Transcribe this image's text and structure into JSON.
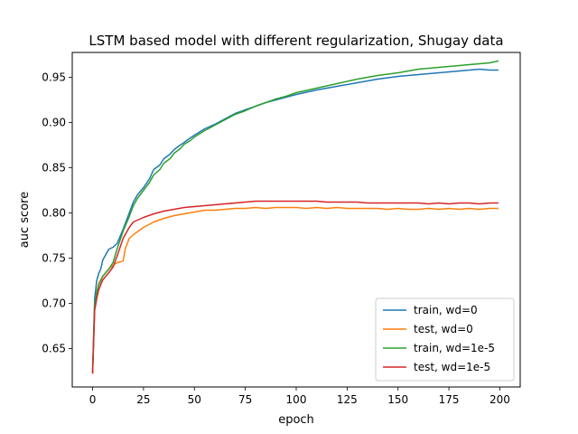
{
  "chart_data": {
    "type": "line",
    "title": "LSTM based model with different regularization, Shugay data",
    "xlabel": "epoch",
    "ylabel": "auc score",
    "xlim": [
      -10,
      210
    ],
    "ylim": [
      0.6075,
      0.9775
    ],
    "xticks": [
      0,
      25,
      50,
      75,
      100,
      125,
      150,
      175,
      200
    ],
    "yticks": [
      0.65,
      0.7,
      0.75,
      0.8,
      0.85,
      0.9,
      0.95
    ],
    "grid": false,
    "legend_position": "lower-right",
    "series": [
      {
        "name": "train, wd=0",
        "color": "#1f77b4",
        "x": [
          0,
          1,
          2,
          3,
          4,
          5,
          6,
          8,
          10,
          12,
          15,
          18,
          20,
          22,
          25,
          28,
          30,
          33,
          35,
          38,
          40,
          43,
          45,
          48,
          50,
          55,
          60,
          65,
          70,
          75,
          80,
          85,
          90,
          95,
          100,
          110,
          120,
          130,
          140,
          150,
          160,
          170,
          180,
          190,
          195,
          199
        ],
        "y": [
          0.625,
          0.705,
          0.725,
          0.733,
          0.738,
          0.748,
          0.752,
          0.76,
          0.762,
          0.766,
          0.782,
          0.8,
          0.812,
          0.82,
          0.828,
          0.838,
          0.848,
          0.853,
          0.86,
          0.865,
          0.87,
          0.875,
          0.878,
          0.883,
          0.886,
          0.893,
          0.898,
          0.904,
          0.91,
          0.914,
          0.918,
          0.922,
          0.925,
          0.928,
          0.931,
          0.936,
          0.94,
          0.944,
          0.948,
          0.951,
          0.953,
          0.955,
          0.957,
          0.959,
          0.958,
          0.958
        ]
      },
      {
        "name": "test, wd=0",
        "color": "#ff7f0e",
        "x": [
          0,
          1,
          2,
          3,
          5,
          8,
          10,
          12,
          14,
          15,
          16,
          18,
          20,
          25,
          30,
          35,
          40,
          45,
          50,
          55,
          60,
          65,
          70,
          75,
          80,
          85,
          90,
          95,
          100,
          105,
          110,
          115,
          120,
          125,
          130,
          135,
          140,
          145,
          150,
          155,
          160,
          165,
          170,
          175,
          180,
          185,
          190,
          195,
          199
        ],
        "y": [
          0.623,
          0.694,
          0.712,
          0.722,
          0.73,
          0.738,
          0.742,
          0.745,
          0.746,
          0.747,
          0.76,
          0.772,
          0.776,
          0.784,
          0.79,
          0.794,
          0.797,
          0.799,
          0.801,
          0.803,
          0.803,
          0.804,
          0.805,
          0.805,
          0.806,
          0.805,
          0.806,
          0.806,
          0.806,
          0.805,
          0.806,
          0.805,
          0.806,
          0.805,
          0.805,
          0.805,
          0.805,
          0.804,
          0.805,
          0.804,
          0.804,
          0.805,
          0.804,
          0.805,
          0.804,
          0.805,
          0.804,
          0.805,
          0.805
        ]
      },
      {
        "name": "train, wd=1e-5",
        "color": "#2ca02c",
        "x": [
          0,
          1,
          2,
          3,
          5,
          8,
          10,
          12,
          15,
          18,
          20,
          22,
          25,
          28,
          30,
          33,
          35,
          38,
          40,
          43,
          45,
          48,
          50,
          55,
          60,
          65,
          70,
          75,
          80,
          85,
          90,
          95,
          100,
          110,
          120,
          130,
          140,
          150,
          160,
          170,
          180,
          190,
          195,
          199
        ],
        "y": [
          0.625,
          0.698,
          0.712,
          0.72,
          0.73,
          0.738,
          0.745,
          0.76,
          0.78,
          0.796,
          0.808,
          0.816,
          0.825,
          0.834,
          0.842,
          0.848,
          0.855,
          0.86,
          0.866,
          0.871,
          0.876,
          0.88,
          0.884,
          0.891,
          0.897,
          0.903,
          0.909,
          0.913,
          0.918,
          0.922,
          0.926,
          0.929,
          0.933,
          0.938,
          0.943,
          0.948,
          0.952,
          0.955,
          0.959,
          0.961,
          0.963,
          0.965,
          0.966,
          0.968
        ]
      },
      {
        "name": "test, wd=1e-5",
        "color": "#d62728",
        "x": [
          0,
          1,
          2,
          3,
          5,
          8,
          10,
          12,
          15,
          18,
          20,
          25,
          30,
          35,
          40,
          45,
          50,
          55,
          60,
          65,
          70,
          75,
          80,
          85,
          90,
          95,
          100,
          105,
          110,
          115,
          120,
          125,
          130,
          135,
          140,
          145,
          150,
          155,
          160,
          165,
          170,
          175,
          180,
          185,
          190,
          195,
          199
        ],
        "y": [
          0.623,
          0.692,
          0.705,
          0.715,
          0.726,
          0.734,
          0.74,
          0.752,
          0.772,
          0.784,
          0.79,
          0.795,
          0.799,
          0.802,
          0.804,
          0.806,
          0.807,
          0.808,
          0.809,
          0.81,
          0.811,
          0.812,
          0.813,
          0.813,
          0.813,
          0.813,
          0.813,
          0.813,
          0.813,
          0.812,
          0.812,
          0.812,
          0.812,
          0.811,
          0.811,
          0.811,
          0.811,
          0.811,
          0.811,
          0.81,
          0.811,
          0.81,
          0.811,
          0.811,
          0.81,
          0.811,
          0.811
        ]
      }
    ]
  }
}
